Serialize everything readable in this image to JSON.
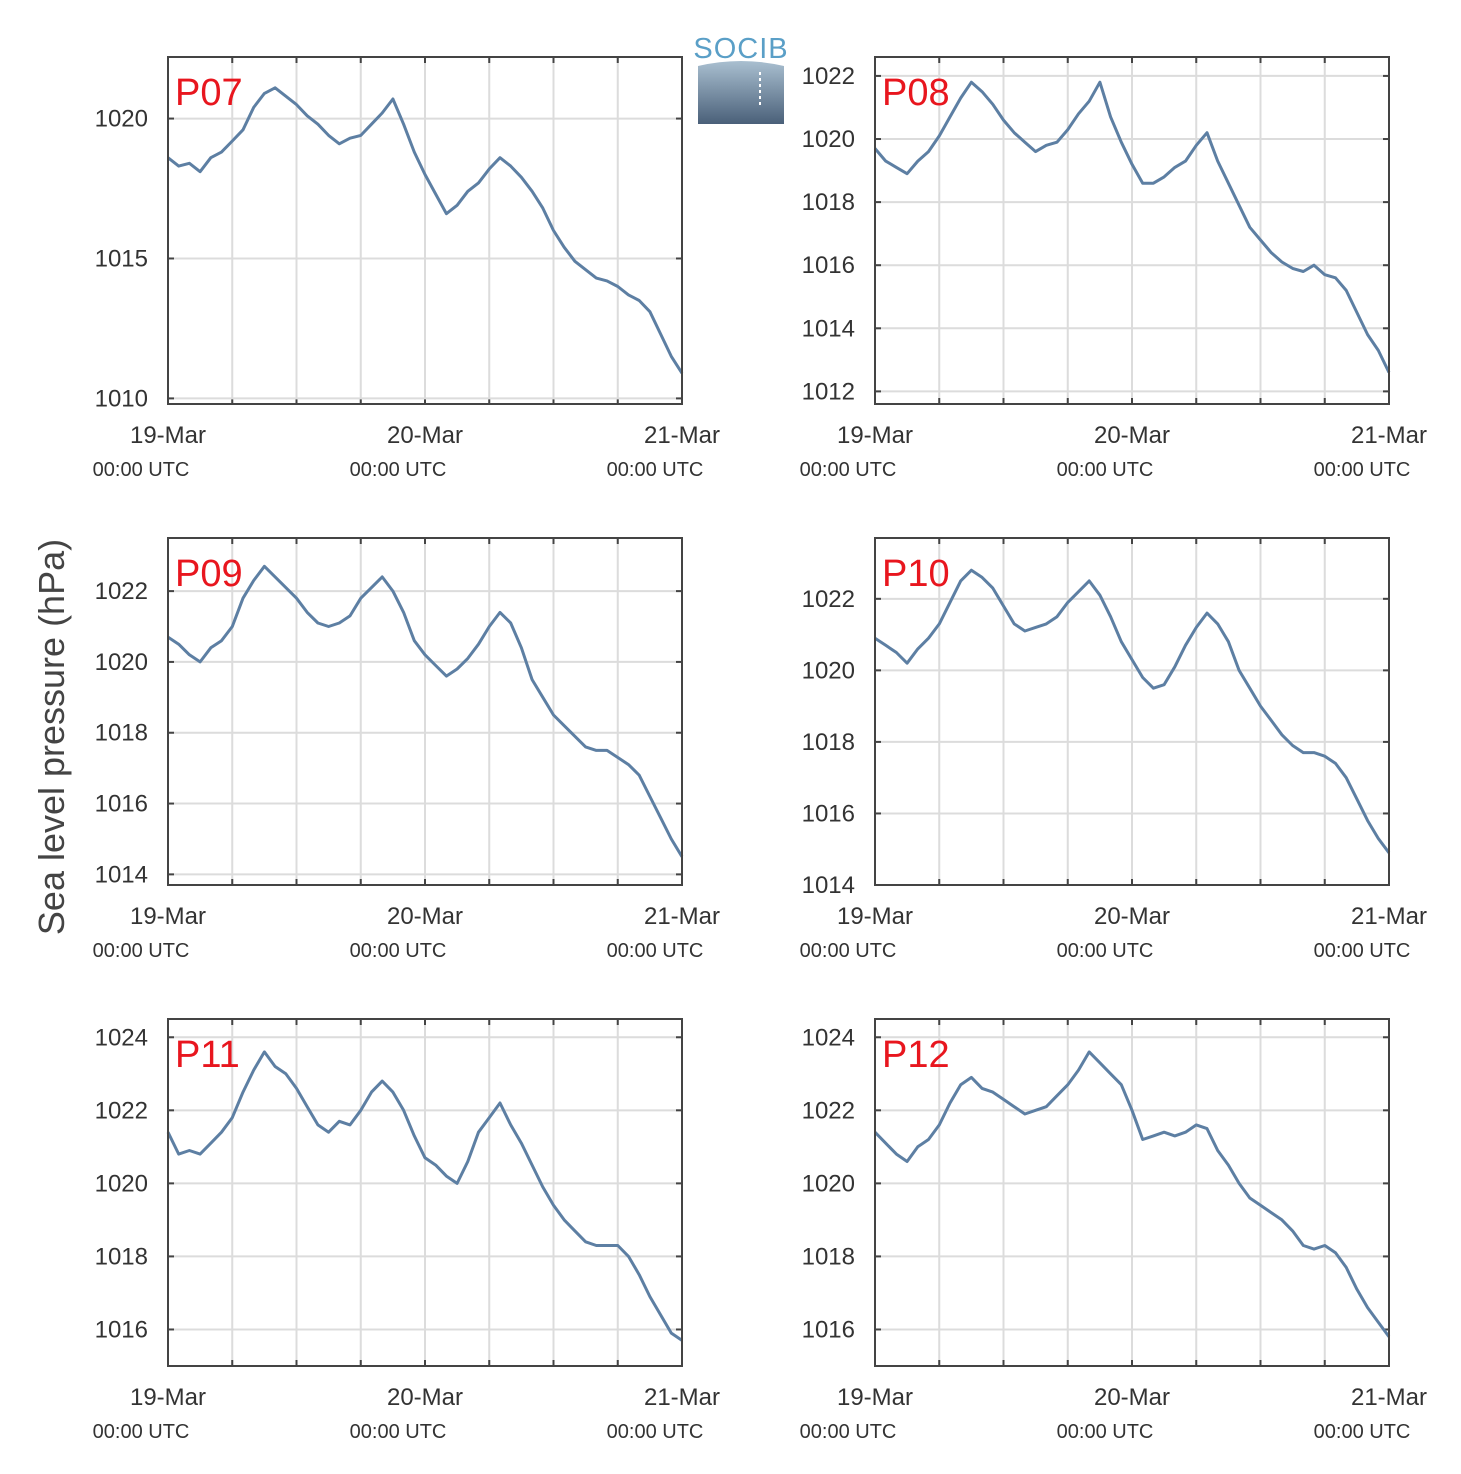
{
  "figure": {
    "ylabel": "Sea level pressure (hPa)",
    "logo": {
      "text": "SOCIB"
    },
    "colors": {
      "line": "#5d7fa3",
      "panel_label": "#e8161e",
      "grid": "#dcdcdc",
      "axes": "#444444",
      "logo_text": "#5a9fc7",
      "logo_top": "#a9bfd0",
      "logo_bottom": "#4a6079"
    }
  },
  "chart_data": [
    {
      "type": "line",
      "panel": "P07",
      "x_ticks": [
        {
          "main": "19-Mar",
          "sub": "00:00 UTC"
        },
        {
          "main": "20-Mar",
          "sub": "00:00 UTC"
        },
        {
          "main": "21-Mar",
          "sub": "00:00 UTC"
        }
      ],
      "xlim": [
        0,
        48
      ],
      "ylim": [
        1009.8,
        1022.2
      ],
      "yticks": [
        1010,
        1015,
        1020
      ],
      "grid": true,
      "x": [
        0,
        1,
        2,
        3,
        4,
        5,
        6,
        7,
        8,
        9,
        10,
        11,
        12,
        13,
        14,
        15,
        16,
        17,
        18,
        19,
        20,
        21,
        22,
        23,
        24,
        25,
        26,
        27,
        28,
        29,
        30,
        31,
        32,
        33,
        34,
        35,
        36,
        37,
        38,
        39,
        40,
        41,
        42,
        43,
        44,
        45,
        46,
        47,
        48
      ],
      "y": [
        1018.6,
        1018.3,
        1018.4,
        1018.1,
        1018.6,
        1018.8,
        1019.2,
        1019.6,
        1020.4,
        1020.9,
        1021.1,
        1020.8,
        1020.5,
        1020.1,
        1019.8,
        1019.4,
        1019.1,
        1019.3,
        1019.4,
        1019.8,
        1020.2,
        1020.7,
        1019.8,
        1018.8,
        1018.0,
        1017.3,
        1016.6,
        1016.9,
        1017.4,
        1017.7,
        1018.2,
        1018.6,
        1018.3,
        1017.9,
        1017.4,
        1016.8,
        1016.0,
        1015.4,
        1014.9,
        1014.6,
        1014.3,
        1014.2,
        1014.0,
        1013.7,
        1013.5,
        1013.1,
        1012.3,
        1011.5,
        1010.9
      ]
    },
    {
      "type": "line",
      "panel": "P08",
      "x_ticks": [
        {
          "main": "19-Mar",
          "sub": "00:00 UTC"
        },
        {
          "main": "20-Mar",
          "sub": "00:00 UTC"
        },
        {
          "main": "21-Mar",
          "sub": "00:00 UTC"
        }
      ],
      "xlim": [
        0,
        48
      ],
      "ylim": [
        1011.6,
        1022.6
      ],
      "yticks": [
        1012,
        1014,
        1016,
        1018,
        1020,
        1022
      ],
      "grid": true,
      "x": [
        0,
        1,
        2,
        3,
        4,
        5,
        6,
        7,
        8,
        9,
        10,
        11,
        12,
        13,
        14,
        15,
        16,
        17,
        18,
        19,
        20,
        21,
        22,
        23,
        24,
        25,
        26,
        27,
        28,
        29,
        30,
        31,
        32,
        33,
        34,
        35,
        36,
        37,
        38,
        39,
        40,
        41,
        42,
        43,
        44,
        45,
        46,
        47,
        48
      ],
      "y": [
        1019.7,
        1019.3,
        1019.1,
        1018.9,
        1019.3,
        1019.6,
        1020.1,
        1020.7,
        1021.3,
        1021.8,
        1021.5,
        1021.1,
        1020.6,
        1020.2,
        1019.9,
        1019.6,
        1019.8,
        1019.9,
        1020.3,
        1020.8,
        1021.2,
        1021.8,
        1020.7,
        1019.9,
        1019.2,
        1018.6,
        1018.6,
        1018.8,
        1019.1,
        1019.3,
        1019.8,
        1020.2,
        1019.3,
        1018.6,
        1017.9,
        1017.2,
        1016.8,
        1016.4,
        1016.1,
        1015.9,
        1015.8,
        1016.0,
        1015.7,
        1015.6,
        1015.2,
        1014.5,
        1013.8,
        1013.3,
        1012.6
      ]
    },
    {
      "type": "line",
      "panel": "P09",
      "x_ticks": [
        {
          "main": "19-Mar",
          "sub": "00:00 UTC"
        },
        {
          "main": "20-Mar",
          "sub": "00:00 UTC"
        },
        {
          "main": "21-Mar",
          "sub": "00:00 UTC"
        }
      ],
      "xlim": [
        0,
        48
      ],
      "ylim": [
        1013.7,
        1023.5
      ],
      "yticks": [
        1014,
        1016,
        1018,
        1020,
        1022
      ],
      "grid": true,
      "x": [
        0,
        1,
        2,
        3,
        4,
        5,
        6,
        7,
        8,
        9,
        10,
        11,
        12,
        13,
        14,
        15,
        16,
        17,
        18,
        19,
        20,
        21,
        22,
        23,
        24,
        25,
        26,
        27,
        28,
        29,
        30,
        31,
        32,
        33,
        34,
        35,
        36,
        37,
        38,
        39,
        40,
        41,
        42,
        43,
        44,
        45,
        46,
        47,
        48
      ],
      "y": [
        1020.7,
        1020.5,
        1020.2,
        1020.0,
        1020.4,
        1020.6,
        1021.0,
        1021.8,
        1022.3,
        1022.7,
        1022.4,
        1022.1,
        1021.8,
        1021.4,
        1021.1,
        1021.0,
        1021.1,
        1021.3,
        1021.8,
        1022.1,
        1022.4,
        1022.0,
        1021.4,
        1020.6,
        1020.2,
        1019.9,
        1019.6,
        1019.8,
        1020.1,
        1020.5,
        1021.0,
        1021.4,
        1021.1,
        1020.4,
        1019.5,
        1019.0,
        1018.5,
        1018.2,
        1017.9,
        1017.6,
        1017.5,
        1017.5,
        1017.3,
        1017.1,
        1016.8,
        1016.2,
        1015.6,
        1015.0,
        1014.5
      ]
    },
    {
      "type": "line",
      "panel": "P10",
      "x_ticks": [
        {
          "main": "19-Mar",
          "sub": "00:00 UTC"
        },
        {
          "main": "20-Mar",
          "sub": "00:00 UTC"
        },
        {
          "main": "21-Mar",
          "sub": "00:00 UTC"
        }
      ],
      "xlim": [
        0,
        48
      ],
      "ylim": [
        1014,
        1023.7
      ],
      "yticks": [
        1014,
        1016,
        1018,
        1020,
        1022
      ],
      "grid": true,
      "x": [
        0,
        1,
        2,
        3,
        4,
        5,
        6,
        7,
        8,
        9,
        10,
        11,
        12,
        13,
        14,
        15,
        16,
        17,
        18,
        19,
        20,
        21,
        22,
        23,
        24,
        25,
        26,
        27,
        28,
        29,
        30,
        31,
        32,
        33,
        34,
        35,
        36,
        37,
        38,
        39,
        40,
        41,
        42,
        43,
        44,
        45,
        46,
        47,
        48
      ],
      "y": [
        1020.9,
        1020.7,
        1020.5,
        1020.2,
        1020.6,
        1020.9,
        1021.3,
        1021.9,
        1022.5,
        1022.8,
        1022.6,
        1022.3,
        1021.8,
        1021.3,
        1021.1,
        1021.2,
        1021.3,
        1021.5,
        1021.9,
        1022.2,
        1022.5,
        1022.1,
        1021.5,
        1020.8,
        1020.3,
        1019.8,
        1019.5,
        1019.6,
        1020.1,
        1020.7,
        1021.2,
        1021.6,
        1021.3,
        1020.8,
        1020.0,
        1019.5,
        1019.0,
        1018.6,
        1018.2,
        1017.9,
        1017.7,
        1017.7,
        1017.6,
        1017.4,
        1017.0,
        1016.4,
        1015.8,
        1015.3,
        1014.9
      ]
    },
    {
      "type": "line",
      "panel": "P11",
      "x_ticks": [
        {
          "main": "19-Mar",
          "sub": "00:00 UTC"
        },
        {
          "main": "20-Mar",
          "sub": "00:00 UTC"
        },
        {
          "main": "21-Mar",
          "sub": "00:00 UTC"
        }
      ],
      "xlim": [
        0,
        48
      ],
      "ylim": [
        1015,
        1024.5
      ],
      "yticks": [
        1016,
        1018,
        1020,
        1022,
        1024
      ],
      "grid": true,
      "x": [
        0,
        1,
        2,
        3,
        4,
        5,
        6,
        7,
        8,
        9,
        10,
        11,
        12,
        13,
        14,
        15,
        16,
        17,
        18,
        19,
        20,
        21,
        22,
        23,
        24,
        25,
        26,
        27,
        28,
        29,
        30,
        31,
        32,
        33,
        34,
        35,
        36,
        37,
        38,
        39,
        40,
        41,
        42,
        43,
        44,
        45,
        46,
        47,
        48
      ],
      "y": [
        1021.4,
        1020.8,
        1020.9,
        1020.8,
        1021.1,
        1021.4,
        1021.8,
        1022.5,
        1023.1,
        1023.6,
        1023.2,
        1023.0,
        1022.6,
        1022.1,
        1021.6,
        1021.4,
        1021.7,
        1021.6,
        1022.0,
        1022.5,
        1022.8,
        1022.5,
        1022.0,
        1021.3,
        1020.7,
        1020.5,
        1020.2,
        1020.0,
        1020.6,
        1021.4,
        1021.8,
        1022.2,
        1021.6,
        1021.1,
        1020.5,
        1019.9,
        1019.4,
        1019.0,
        1018.7,
        1018.4,
        1018.3,
        1018.3,
        1018.3,
        1018.0,
        1017.5,
        1016.9,
        1016.4,
        1015.9,
        1015.7
      ]
    },
    {
      "type": "line",
      "panel": "P12",
      "x_ticks": [
        {
          "main": "19-Mar",
          "sub": "00:00 UTC"
        },
        {
          "main": "20-Mar",
          "sub": "00:00 UTC"
        },
        {
          "main": "21-Mar",
          "sub": "00:00 UTC"
        }
      ],
      "xlim": [
        0,
        48
      ],
      "ylim": [
        1015,
        1024.5
      ],
      "yticks": [
        1016,
        1018,
        1020,
        1022,
        1024
      ],
      "grid": true,
      "x": [
        0,
        1,
        2,
        3,
        4,
        5,
        6,
        7,
        8,
        9,
        10,
        11,
        12,
        13,
        14,
        15,
        16,
        17,
        18,
        19,
        20,
        21,
        22,
        23,
        24,
        25,
        26,
        27,
        28,
        29,
        30,
        31,
        32,
        33,
        34,
        35,
        36,
        37,
        38,
        39,
        40,
        41,
        42,
        43,
        44,
        45,
        46,
        47,
        48
      ],
      "y": [
        1021.4,
        1021.1,
        1020.8,
        1020.6,
        1021.0,
        1021.2,
        1021.6,
        1022.2,
        1022.7,
        1022.9,
        1022.6,
        1022.5,
        1022.3,
        1022.1,
        1021.9,
        1022.0,
        1022.1,
        1022.4,
        1022.7,
        1023.1,
        1023.6,
        1023.3,
        1023.0,
        1022.7,
        1022.0,
        1021.2,
        1021.3,
        1021.4,
        1021.3,
        1021.4,
        1021.6,
        1021.5,
        1020.9,
        1020.5,
        1020.0,
        1019.6,
        1019.4,
        1019.2,
        1019.0,
        1018.7,
        1018.3,
        1018.2,
        1018.3,
        1018.1,
        1017.7,
        1017.1,
        1016.6,
        1016.2,
        1015.8
      ]
    }
  ]
}
